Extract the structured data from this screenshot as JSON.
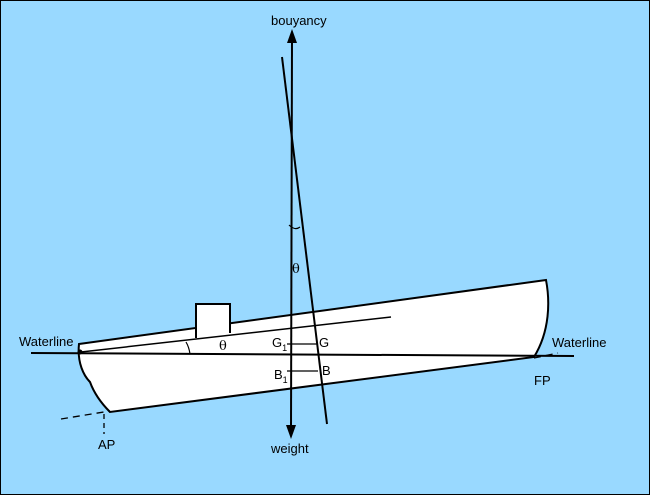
{
  "colors": {
    "background": "#99d9ff",
    "hull": "#ffffff",
    "line": "#000000"
  },
  "labels": {
    "bouyancy": "bouyancy",
    "weight": "weight",
    "waterline_left": "Waterline",
    "waterline_right": "Waterline",
    "fp": "FP",
    "ap": "AP",
    "g1": "G",
    "g1_sub": "1",
    "g": "G",
    "b1": "B",
    "b1_sub": "1",
    "b": "B",
    "theta_trim": "θ",
    "theta_vertical": "θ"
  }
}
